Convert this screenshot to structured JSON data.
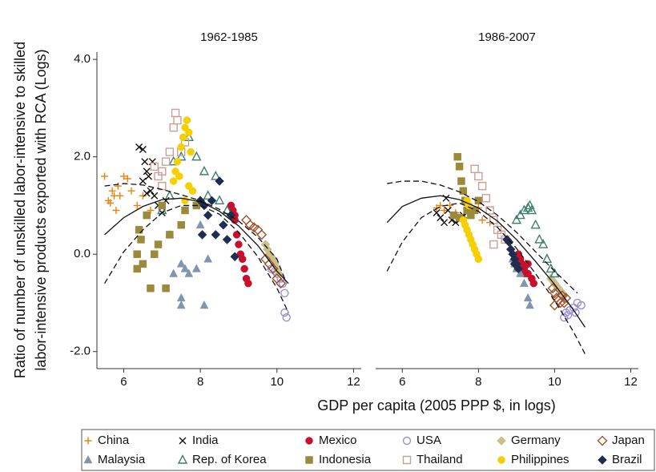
{
  "chart_data": {
    "type": "scatter",
    "xlabel": "GDP per capita (2005 PPP $, in logs)",
    "ylabel": [
      "Ratio of number of unskilled labor-intensive to skilled",
      "labor-intensive products exported with RCA (Logs)"
    ],
    "xlim": [
      5.3,
      12.2
    ],
    "ylim": [
      -2.35,
      4.15
    ],
    "xticks": [
      6,
      8,
      10,
      12
    ],
    "yticks": [
      {
        "value": 4,
        "label": "4.0"
      },
      {
        "value": 2,
        "label": "2.0"
      },
      {
        "value": 0,
        "label": "0.0"
      },
      {
        "value": -2,
        "label": "-2.0"
      }
    ],
    "panels": [
      {
        "title": "1962-1985",
        "fit": {
          "x": [
            5.5,
            6.0,
            6.5,
            7.0,
            7.5,
            8.0,
            8.5,
            9.0,
            9.5,
            10.0,
            10.3
          ],
          "values": [
            0.4,
            0.75,
            0.98,
            1.12,
            1.15,
            1.08,
            0.88,
            0.58,
            0.18,
            -0.35,
            -0.6
          ]
        },
        "fit_upper": {
          "x": [
            5.5,
            6.0,
            6.5,
            7.0,
            7.5,
            8.0,
            8.5,
            9.0,
            9.5,
            10.0,
            10.2
          ],
          "values": [
            1.4,
            1.45,
            1.42,
            1.33,
            1.22,
            1.1,
            0.92,
            0.68,
            0.35,
            -0.1,
            -0.5
          ]
        },
        "fit_lower": {
          "x": [
            5.5,
            6.0,
            6.5,
            7.0,
            7.5,
            8.0,
            8.5,
            9.0,
            9.5,
            10.0,
            10.3
          ],
          "values": [
            -0.6,
            0.05,
            0.5,
            0.85,
            1.0,
            1.0,
            0.82,
            0.45,
            -0.05,
            -0.7,
            -1.2
          ]
        }
      },
      {
        "title": "1986-2007",
        "fit": {
          "x": [
            5.6,
            6.0,
            6.5,
            7.0,
            7.5,
            8.0,
            8.5,
            9.0,
            9.5,
            10.0,
            10.5,
            10.8
          ],
          "values": [
            0.65,
            0.98,
            1.15,
            1.2,
            1.12,
            0.95,
            0.68,
            0.3,
            -0.15,
            -0.62,
            -1.15,
            -1.5
          ]
        },
        "fit_upper": {
          "x": [
            5.6,
            6.0,
            6.5,
            7.0,
            7.5,
            8.0,
            8.5,
            9.0,
            9.5,
            10.0,
            10.6
          ],
          "values": [
            1.45,
            1.5,
            1.5,
            1.42,
            1.28,
            1.08,
            0.8,
            0.45,
            0.05,
            -0.35,
            -0.8
          ]
        },
        "fit_lower": {
          "x": [
            5.6,
            6.0,
            6.5,
            7.0,
            7.5,
            8.0,
            8.5,
            9.0,
            9.5,
            10.0,
            10.5,
            10.8
          ],
          "values": [
            -0.35,
            0.25,
            0.75,
            0.98,
            1.05,
            0.88,
            0.55,
            0.12,
            -0.4,
            -0.95,
            -1.6,
            -2.05
          ]
        }
      }
    ],
    "series": [
      {
        "name": "China",
        "color": "#e8820c",
        "marker": "plus",
        "panels": [
          {
            "x": [
              5.5,
              5.6,
              5.65,
              5.7,
              5.75,
              5.8,
              5.85,
              5.9,
              6.0,
              6.1,
              6.2,
              6.35,
              6.5,
              6.7
            ],
            "values": [
              1.6,
              1.1,
              1.05,
              1.3,
              1.2,
              0.9,
              1.4,
              1.2,
              1.6,
              1.55,
              1.3,
              1.0,
              1.2,
              0.9
            ]
          },
          {
            "x": [
              6.9,
              7.0,
              7.1,
              7.25,
              7.4,
              7.6,
              7.8,
              8.0,
              8.1,
              8.3
            ],
            "values": [
              0.95,
              1.0,
              0.9,
              1.0,
              0.85,
              0.75,
              0.8,
              0.95,
              0.7,
              0.65
            ]
          }
        ]
      },
      {
        "name": "India",
        "color": "#111111",
        "marker": "cross",
        "panels": [
          {
            "x": [
              6.4,
              6.5,
              6.55,
              6.6,
              6.65,
              6.5,
              6.7,
              6.8,
              6.9,
              7.0,
              6.6,
              6.75,
              7.1
            ],
            "values": [
              2.2,
              2.15,
              1.9,
              1.7,
              1.6,
              1.5,
              1.3,
              1.2,
              1.0,
              0.85,
              1.25,
              1.9,
              1.1
            ]
          },
          {
            "x": [
              6.9,
              7.0,
              7.1,
              7.15,
              7.2,
              7.3,
              7.4,
              7.5,
              7.6,
              7.7
            ],
            "values": [
              0.85,
              0.75,
              0.65,
              1.15,
              0.9,
              0.7,
              0.65,
              0.7,
              0.8,
              0.85
            ]
          }
        ]
      },
      {
        "name": "Mexico",
        "color": "#c8102e",
        "marker": "circle",
        "panels": [
          {
            "x": [
              8.8,
              8.85,
              8.9,
              8.95,
              9.0,
              9.05,
              9.1,
              9.15,
              9.2,
              9.25,
              8.9
            ],
            "values": [
              1.0,
              0.9,
              0.7,
              0.4,
              0.2,
              0.0,
              -0.1,
              -0.3,
              -0.5,
              -0.6,
              0.8
            ]
          },
          {
            "x": [
              9.05,
              9.1,
              9.15,
              9.2,
              9.3,
              9.4,
              9.45,
              9.2,
              9.3
            ],
            "values": [
              0.0,
              -0.1,
              -0.2,
              -0.3,
              -0.4,
              -0.5,
              -0.6,
              -0.4,
              -0.2
            ]
          }
        ]
      },
      {
        "name": "USA",
        "color": "#9b8fd0",
        "marker": "ocircle",
        "panels": [
          {
            "x": [
              9.85,
              9.95,
              10.0,
              10.1,
              10.15,
              10.2,
              10.25,
              10.2
            ],
            "values": [
              -0.3,
              -0.35,
              -0.4,
              -0.5,
              -0.6,
              -0.8,
              -1.3,
              -1.2
            ]
          },
          {
            "x": [
              10.25,
              10.3,
              10.35,
              10.4,
              10.5,
              10.6,
              10.7,
              10.55
            ],
            "values": [
              -1.3,
              -1.2,
              -1.25,
              -1.15,
              -1.1,
              -1.0,
              -1.05,
              -1.2
            ]
          }
        ]
      },
      {
        "name": "Germany",
        "color": "#c9c08a",
        "marker": "diamond",
        "panels": [
          {
            "x": [
              9.7,
              9.75,
              9.8,
              9.85,
              9.9,
              9.95,
              10.0,
              10.05
            ],
            "values": [
              0.2,
              0.1,
              0.0,
              -0.05,
              -0.1,
              -0.2,
              -0.3,
              -0.4
            ]
          },
          {
            "x": [
              9.9,
              9.95,
              10.0,
              10.05,
              10.1,
              10.15,
              10.2,
              10.25
            ],
            "values": [
              -0.5,
              -0.55,
              -0.6,
              -0.65,
              -0.7,
              -0.75,
              -0.8,
              -0.85
            ]
          }
        ]
      },
      {
        "name": "Japan",
        "color": "#a0522d",
        "marker": "odiamond",
        "panels": [
          {
            "x": [
              9.2,
              9.3,
              9.4,
              9.5,
              9.6,
              9.7,
              9.8,
              9.9,
              10.0,
              10.1
            ],
            "values": [
              0.7,
              0.6,
              0.55,
              0.5,
              0.4,
              -0.1,
              -0.2,
              -0.3,
              -0.5,
              -0.6
            ]
          },
          {
            "x": [
              9.95,
              10.0,
              10.05,
              10.1,
              10.15,
              10.2,
              10.25,
              10.3,
              10.0
            ],
            "values": [
              -0.7,
              -0.8,
              -0.9,
              -0.95,
              -1.0,
              -0.85,
              -1.0,
              -0.9,
              -1.05
            ]
          }
        ]
      },
      {
        "name": "Malaysia",
        "color": "#8096ae",
        "marker": "triangle",
        "panels": [
          {
            "x": [
              7.5,
              7.6,
              7.7,
              7.5,
              7.5,
              8.1,
              7.9,
              8.2,
              7.2,
              8.0,
              7.3
            ],
            "values": [
              -0.2,
              -0.3,
              -0.4,
              -0.9,
              -1.05,
              -1.05,
              -0.3,
              -0.1,
              0.4,
              0.6,
              -0.4
            ]
          },
          {
            "x": [
              8.9,
              9.0,
              9.1,
              9.2,
              9.3,
              9.35,
              8.95
            ],
            "values": [
              -0.1,
              -0.3,
              -0.4,
              -0.6,
              -0.9,
              -1.05,
              -0.2
            ]
          }
        ]
      },
      {
        "name": "Rep. of Korea",
        "color": "#3e7f6e",
        "marker": "otriangle",
        "panels": [
          {
            "x": [
              7.0,
              7.2,
              7.3,
              7.5,
              7.7,
              7.9,
              8.1,
              8.2,
              8.5,
              8.7,
              8.4
            ],
            "values": [
              0.9,
              1.2,
              1.9,
              2.0,
              2.4,
              2.0,
              1.7,
              1.2,
              1.1,
              0.9,
              1.6
            ]
          },
          {
            "x": [
              9.0,
              9.1,
              9.2,
              9.3,
              9.4,
              9.5,
              9.6,
              9.7,
              9.8,
              9.9,
              10.0,
              9.35
            ],
            "values": [
              0.7,
              0.8,
              0.9,
              0.95,
              0.9,
              0.6,
              0.3,
              0.2,
              -0.1,
              -0.3,
              -0.4,
              1.0
            ]
          }
        ]
      },
      {
        "name": "Indonesia",
        "color": "#9c8a3c",
        "marker": "square",
        "panels": [
          {
            "x": [
              6.35,
              6.4,
              6.45,
              6.5,
              6.7,
              6.8,
              6.9,
              7.1,
              7.2,
              7.5,
              7.6,
              7.9,
              6.6,
              7.0,
              6.35
            ],
            "values": [
              0.0,
              0.5,
              0.3,
              -0.2,
              -0.7,
              0.0,
              0.2,
              -0.7,
              0.4,
              0.6,
              0.9,
              1.0,
              0.8,
              1.0,
              -0.3
            ]
          },
          {
            "x": [
              7.35,
              7.45,
              7.5,
              7.55,
              7.6,
              7.65,
              7.7,
              7.8,
              7.9,
              8.0,
              7.5
            ],
            "values": [
              0.8,
              2.0,
              1.8,
              1.5,
              1.3,
              1.1,
              0.9,
              0.8,
              0.9,
              1.1,
              0.75
            ]
          }
        ]
      },
      {
        "name": "Thailand",
        "color": "#c8a09a",
        "marker": "osquare",
        "panels": [
          {
            "x": [
              6.8,
              6.9,
              7.0,
              7.1,
              7.2,
              7.3,
              7.4,
              7.35,
              7.5,
              7.6,
              7.0
            ],
            "values": [
              1.8,
              1.6,
              1.7,
              1.9,
              2.1,
              2.6,
              2.75,
              2.9,
              2.1,
              2.3,
              1.4
            ]
          },
          {
            "x": [
              7.9,
              8.0,
              8.1,
              8.2,
              8.3,
              8.4,
              8.5,
              8.6,
              8.7,
              8.4
            ],
            "values": [
              1.75,
              1.6,
              1.4,
              1.15,
              0.9,
              0.7,
              0.5,
              0.4,
              0.3,
              0.2
            ]
          }
        ]
      },
      {
        "name": "Philippines",
        "color": "#f5d000",
        "marker": "circle",
        "panels": [
          {
            "x": [
              7.3,
              7.35,
              7.4,
              7.5,
              7.55,
              7.6,
              7.65,
              7.7,
              7.75,
              7.8,
              7.7,
              7.6,
              7.45
            ],
            "values": [
              1.5,
              1.7,
              1.9,
              2.2,
              2.4,
              2.6,
              2.75,
              2.5,
              2.1,
              1.3,
              1.4,
              1.1,
              1.6
            ]
          },
          {
            "x": [
              7.6,
              7.65,
              7.7,
              7.75,
              7.8,
              7.85,
              7.9,
              7.95,
              8.0,
              7.7,
              7.75
            ],
            "values": [
              0.7,
              0.6,
              0.5,
              0.4,
              0.3,
              0.2,
              0.1,
              0.0,
              -0.1,
              1.1,
              1.0
            ]
          }
        ]
      },
      {
        "name": "Brazil",
        "color": "#1f2d50",
        "marker": "diamond",
        "panels": [
          {
            "x": [
              8.0,
              8.1,
              8.2,
              8.3,
              8.5,
              8.4,
              8.6,
              8.7,
              8.9,
              8.8,
              8.05
            ],
            "values": [
              1.1,
              1.0,
              0.8,
              1.1,
              1.5,
              0.4,
              0.6,
              0.3,
              -0.05,
              0.8,
              0.4
            ]
          },
          {
            "x": [
              8.75,
              8.8,
              8.85,
              8.9,
              8.95,
              9.0,
              9.05,
              8.95
            ],
            "values": [
              0.3,
              0.25,
              0.1,
              0.0,
              -0.1,
              -0.2,
              -0.3,
              -0.2
            ]
          }
        ]
      }
    ]
  }
}
